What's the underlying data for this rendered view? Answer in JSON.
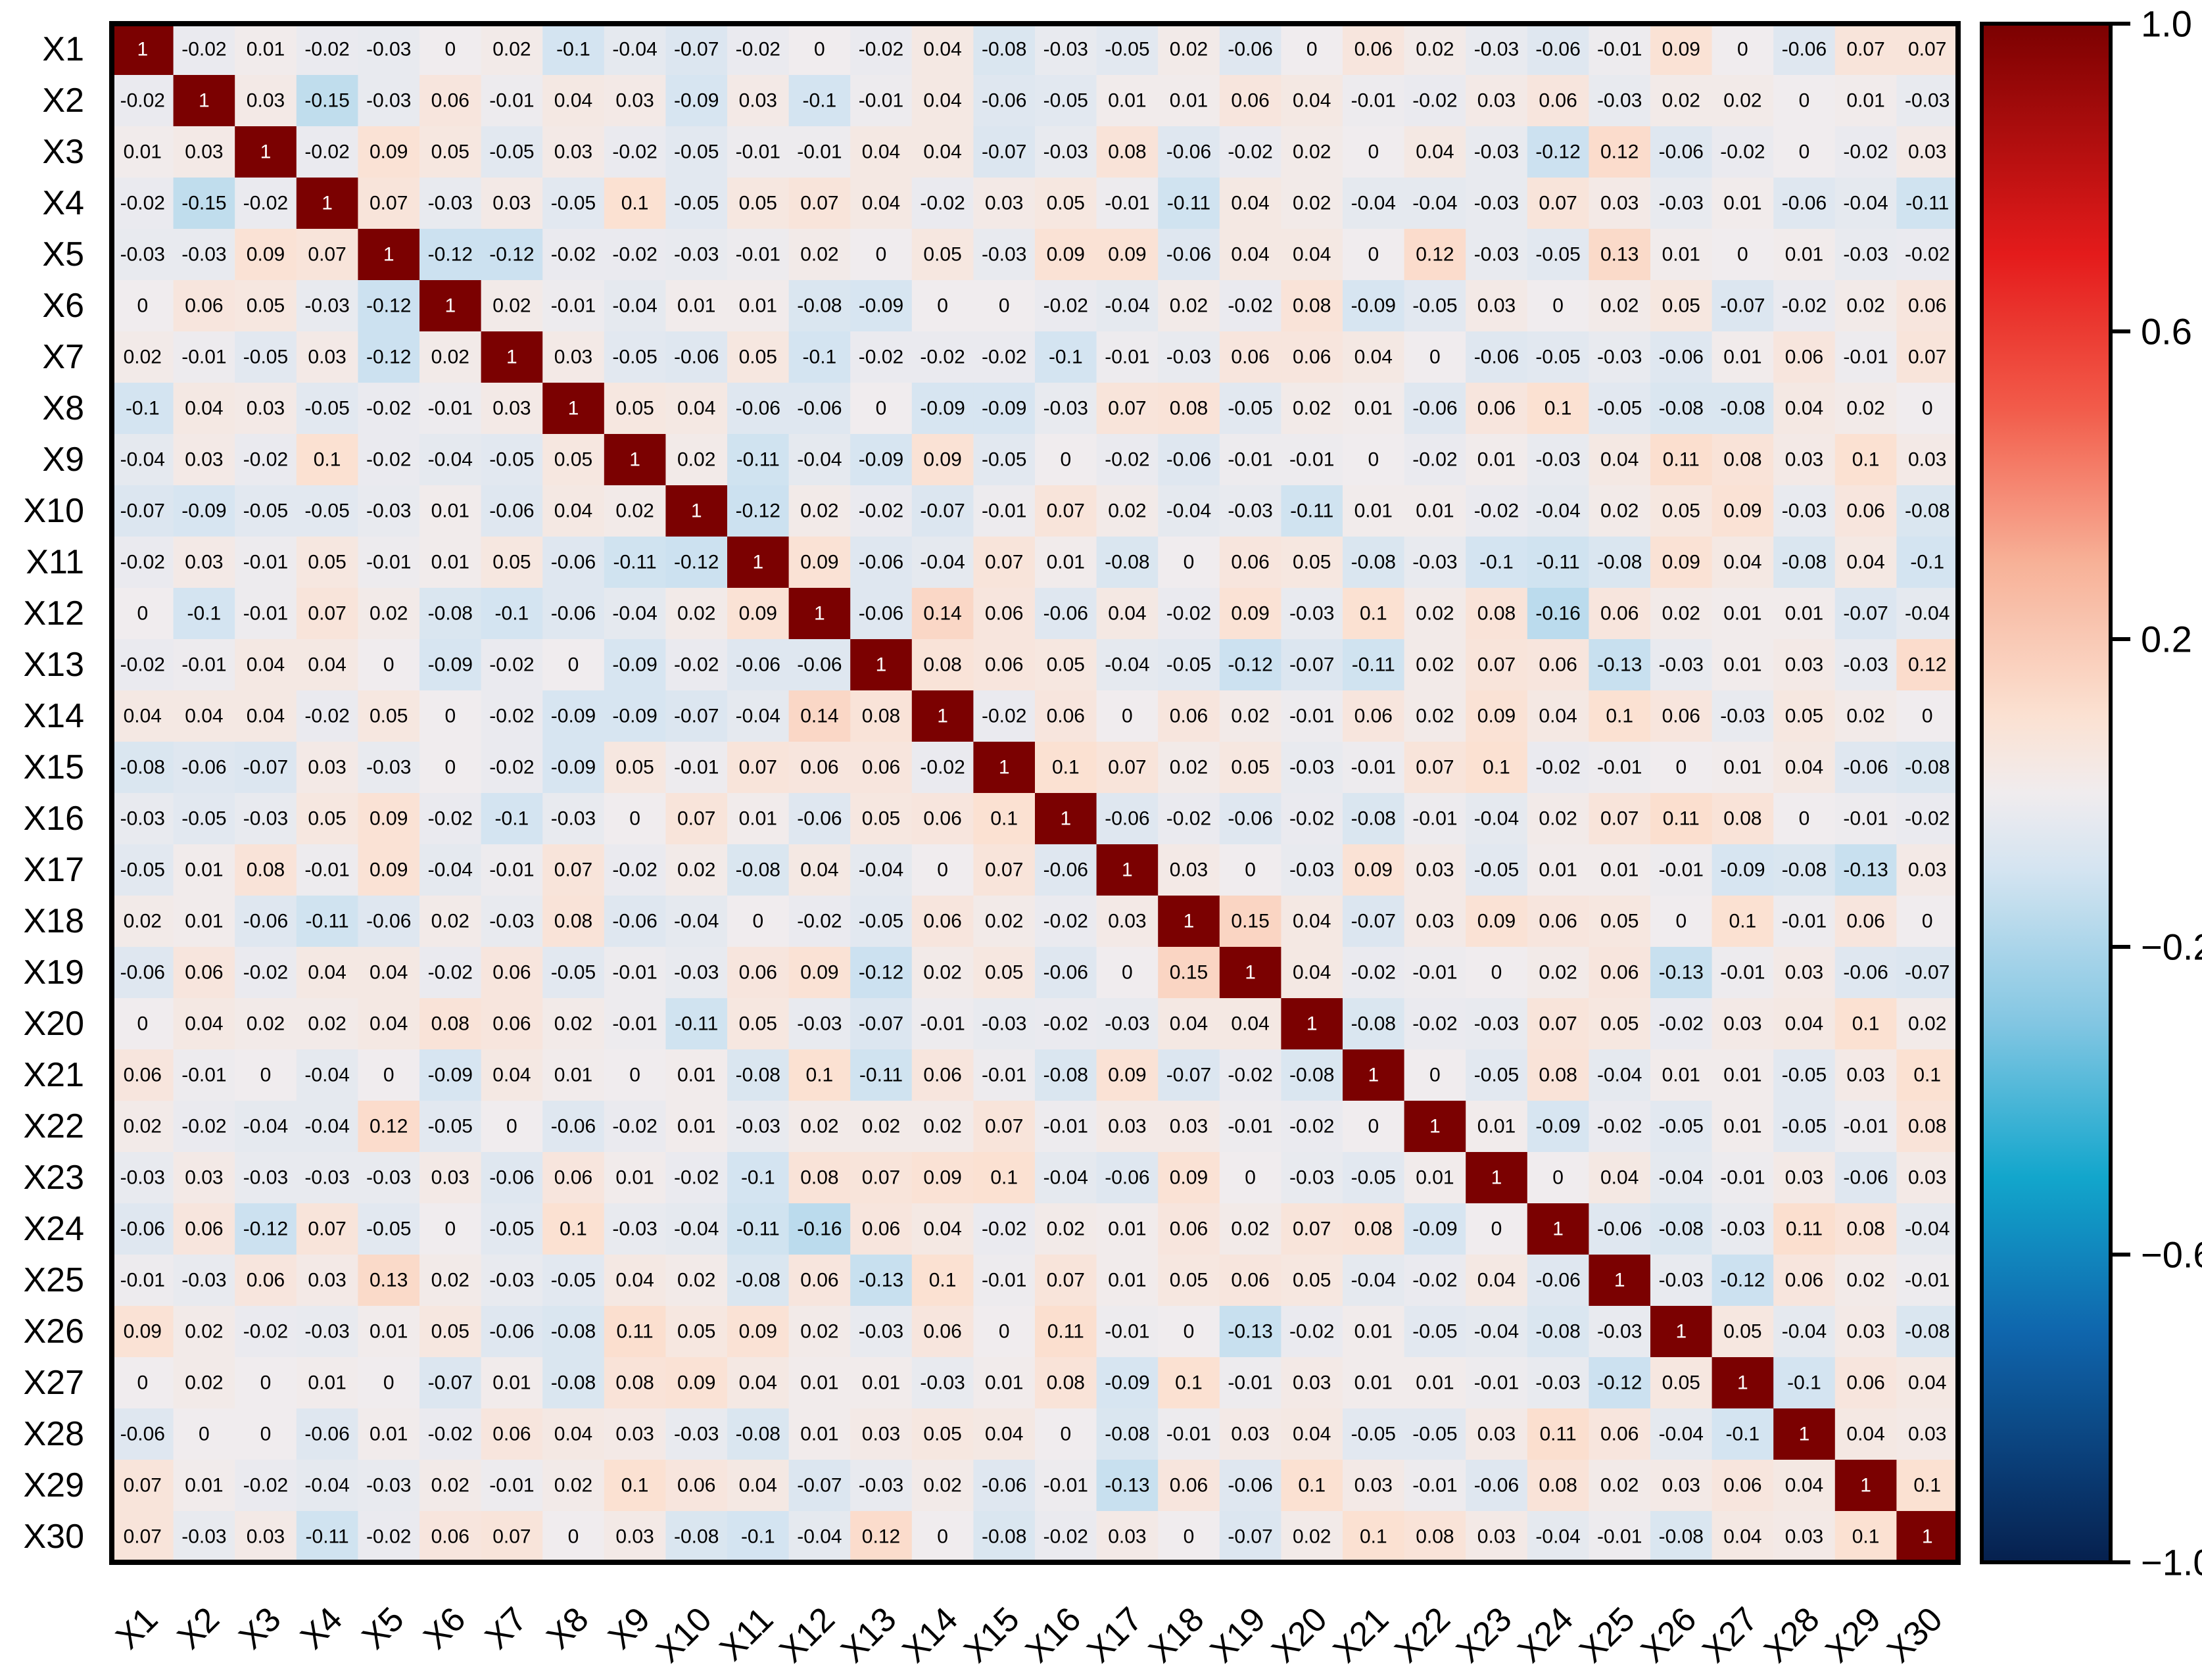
{
  "chart_data": {
    "type": "heatmap",
    "title": "",
    "xlabel": "",
    "ylabel": "",
    "variables": [
      "X1",
      "X2",
      "X3",
      "X4",
      "X5",
      "X6",
      "X7",
      "X8",
      "X9",
      "X10",
      "X11",
      "X12",
      "X13",
      "X14",
      "X15",
      "X16",
      "X17",
      "X18",
      "X19",
      "X20",
      "X21",
      "X22",
      "X23",
      "X24",
      "X25",
      "X26",
      "X27",
      "X28",
      "X29",
      "X30"
    ],
    "values": [
      [
        1,
        -0.02,
        0.01,
        -0.02,
        -0.03,
        0,
        0.02,
        -0.1,
        -0.04,
        -0.07,
        -0.02,
        0,
        -0.02,
        0.04,
        -0.08,
        -0.03,
        -0.05,
        0.02,
        -0.06,
        0,
        0.06,
        0.02,
        -0.03,
        -0.06,
        -0.01,
        0.09,
        0,
        -0.06,
        0.07,
        0.07
      ],
      [
        -0.02,
        1,
        0.03,
        -0.15,
        -0.03,
        0.06,
        -0.01,
        0.04,
        0.03,
        -0.09,
        0.03,
        -0.1,
        -0.01,
        0.04,
        -0.06,
        -0.05,
        0.01,
        0.01,
        0.06,
        0.04,
        -0.01,
        -0.02,
        0.03,
        0.06,
        -0.03,
        0.02,
        0.02,
        0,
        0.01,
        -0.03
      ],
      [
        0.01,
        0.03,
        1,
        -0.02,
        0.09,
        0.05,
        -0.05,
        0.03,
        -0.02,
        -0.05,
        -0.01,
        -0.01,
        0.04,
        0.04,
        -0.07,
        -0.03,
        0.08,
        -0.06,
        -0.02,
        0.02,
        0,
        0.04,
        -0.03,
        -0.12,
        0.12,
        -0.06,
        -0.02,
        0,
        -0.02,
        0.03
      ],
      [
        -0.02,
        -0.15,
        -0.02,
        1,
        0.07,
        -0.03,
        0.03,
        -0.05,
        0.1,
        -0.05,
        0.05,
        0.07,
        0.04,
        -0.02,
        0.03,
        0.05,
        -0.01,
        -0.11,
        0.04,
        0.02,
        -0.04,
        -0.04,
        -0.03,
        0.07,
        0.03,
        -0.03,
        0.01,
        -0.06,
        -0.04,
        -0.11
      ],
      [
        -0.03,
        -0.03,
        0.09,
        0.07,
        1,
        -0.12,
        -0.12,
        -0.02,
        -0.02,
        -0.03,
        -0.01,
        0.02,
        0,
        0.05,
        -0.03,
        0.09,
        0.09,
        -0.06,
        0.04,
        0.04,
        0,
        0.12,
        -0.03,
        -0.05,
        0.13,
        0.01,
        0,
        0.01,
        -0.03,
        -0.02
      ],
      [
        0,
        0.06,
        0.05,
        -0.03,
        -0.12,
        1,
        0.02,
        -0.01,
        -0.04,
        0.01,
        0.01,
        -0.08,
        -0.09,
        0,
        0,
        -0.02,
        -0.04,
        0.02,
        -0.02,
        0.08,
        -0.09,
        -0.05,
        0.03,
        0,
        0.02,
        0.05,
        -0.07,
        -0.02,
        0.02,
        0.06
      ],
      [
        0.02,
        -0.01,
        -0.05,
        0.03,
        -0.12,
        0.02,
        1,
        0.03,
        -0.05,
        -0.06,
        0.05,
        -0.1,
        -0.02,
        -0.02,
        -0.02,
        -0.1,
        -0.01,
        -0.03,
        0.06,
        0.06,
        0.04,
        0,
        -0.06,
        -0.05,
        -0.03,
        -0.06,
        0.01,
        0.06,
        -0.01,
        0.07
      ],
      [
        -0.1,
        0.04,
        0.03,
        -0.05,
        -0.02,
        -0.01,
        0.03,
        1,
        0.05,
        0.04,
        -0.06,
        -0.06,
        0,
        -0.09,
        -0.09,
        -0.03,
        0.07,
        0.08,
        -0.05,
        0.02,
        0.01,
        -0.06,
        0.06,
        0.1,
        -0.05,
        -0.08,
        -0.08,
        0.04,
        0.02,
        0
      ],
      [
        -0.04,
        0.03,
        -0.02,
        0.1,
        -0.02,
        -0.04,
        -0.05,
        0.05,
        1,
        0.02,
        -0.11,
        -0.04,
        -0.09,
        0.09,
        -0.05,
        0,
        -0.02,
        -0.06,
        -0.01,
        -0.01,
        0,
        -0.02,
        0.01,
        -0.03,
        0.04,
        0.11,
        0.08,
        0.03,
        0.1,
        0.03
      ],
      [
        -0.07,
        -0.09,
        -0.05,
        -0.05,
        -0.03,
        0.01,
        -0.06,
        0.04,
        0.02,
        1,
        -0.12,
        0.02,
        -0.02,
        -0.07,
        -0.01,
        0.07,
        0.02,
        -0.04,
        -0.03,
        -0.11,
        0.01,
        0.01,
        -0.02,
        -0.04,
        0.02,
        0.05,
        0.09,
        -0.03,
        0.06,
        -0.08
      ],
      [
        -0.02,
        0.03,
        -0.01,
        0.05,
        -0.01,
        0.01,
        0.05,
        -0.06,
        -0.11,
        -0.12,
        1,
        0.09,
        -0.06,
        -0.04,
        0.07,
        0.01,
        -0.08,
        0,
        0.06,
        0.05,
        -0.08,
        -0.03,
        -0.1,
        -0.11,
        -0.08,
        0.09,
        0.04,
        -0.08,
        0.04,
        -0.1
      ],
      [
        0,
        -0.1,
        -0.01,
        0.07,
        0.02,
        -0.08,
        -0.1,
        -0.06,
        -0.04,
        0.02,
        0.09,
        1,
        -0.06,
        0.14,
        0.06,
        -0.06,
        0.04,
        -0.02,
        0.09,
        -0.03,
        0.1,
        0.02,
        0.08,
        -0.16,
        0.06,
        0.02,
        0.01,
        0.01,
        -0.07,
        -0.04
      ],
      [
        -0.02,
        -0.01,
        0.04,
        0.04,
        0,
        -0.09,
        -0.02,
        0,
        -0.09,
        -0.02,
        -0.06,
        -0.06,
        1,
        0.08,
        0.06,
        0.05,
        -0.04,
        -0.05,
        -0.12,
        -0.07,
        -0.11,
        0.02,
        0.07,
        0.06,
        -0.13,
        -0.03,
        0.01,
        0.03,
        -0.03,
        0.12
      ],
      [
        0.04,
        0.04,
        0.04,
        -0.02,
        0.05,
        0,
        -0.02,
        -0.09,
        -0.09,
        -0.07,
        -0.04,
        0.14,
        0.08,
        1,
        -0.02,
        0.06,
        0,
        0.06,
        0.02,
        -0.01,
        0.06,
        0.02,
        0.09,
        0.04,
        0.1,
        0.06,
        -0.03,
        0.05,
        0.02,
        0
      ],
      [
        -0.08,
        -0.06,
        -0.07,
        0.03,
        -0.03,
        0,
        -0.02,
        -0.09,
        0.05,
        -0.01,
        0.07,
        0.06,
        0.06,
        -0.02,
        1,
        0.1,
        0.07,
        0.02,
        0.05,
        -0.03,
        -0.01,
        0.07,
        0.1,
        -0.02,
        -0.01,
        0,
        0.01,
        0.04,
        -0.06,
        -0.08
      ],
      [
        -0.03,
        -0.05,
        -0.03,
        0.05,
        0.09,
        -0.02,
        -0.1,
        -0.03,
        0,
        0.07,
        0.01,
        -0.06,
        0.05,
        0.06,
        0.1,
        1,
        -0.06,
        -0.02,
        -0.06,
        -0.02,
        -0.08,
        -0.01,
        -0.04,
        0.02,
        0.07,
        0.11,
        0.08,
        0,
        -0.01,
        -0.02
      ],
      [
        -0.05,
        0.01,
        0.08,
        -0.01,
        0.09,
        -0.04,
        -0.01,
        0.07,
        -0.02,
        0.02,
        -0.08,
        0.04,
        -0.04,
        0,
        0.07,
        -0.06,
        1,
        0.03,
        0,
        -0.03,
        0.09,
        0.03,
        -0.05,
        0.01,
        0.01,
        -0.01,
        -0.09,
        -0.08,
        -0.13,
        0.03
      ],
      [
        0.02,
        0.01,
        -0.06,
        -0.11,
        -0.06,
        0.02,
        -0.03,
        0.08,
        -0.06,
        -0.04,
        0,
        -0.02,
        -0.05,
        0.06,
        0.02,
        -0.02,
        0.03,
        1,
        0.15,
        0.04,
        -0.07,
        0.03,
        0.09,
        0.06,
        0.05,
        0,
        0.1,
        -0.01,
        0.06,
        0
      ],
      [
        -0.06,
        0.06,
        -0.02,
        0.04,
        0.04,
        -0.02,
        0.06,
        -0.05,
        -0.01,
        -0.03,
        0.06,
        0.09,
        -0.12,
        0.02,
        0.05,
        -0.06,
        0,
        0.15,
        1,
        0.04,
        -0.02,
        -0.01,
        0,
        0.02,
        0.06,
        -0.13,
        -0.01,
        0.03,
        -0.06,
        -0.07
      ],
      [
        0,
        0.04,
        0.02,
        0.02,
        0.04,
        0.08,
        0.06,
        0.02,
        -0.01,
        -0.11,
        0.05,
        -0.03,
        -0.07,
        -0.01,
        -0.03,
        -0.02,
        -0.03,
        0.04,
        0.04,
        1,
        -0.08,
        -0.02,
        -0.03,
        0.07,
        0.05,
        -0.02,
        0.03,
        0.04,
        0.1,
        0.02
      ],
      [
        0.06,
        -0.01,
        0,
        -0.04,
        0,
        -0.09,
        0.04,
        0.01,
        0,
        0.01,
        -0.08,
        0.1,
        -0.11,
        0.06,
        -0.01,
        -0.08,
        0.09,
        -0.07,
        -0.02,
        -0.08,
        1,
        0,
        -0.05,
        0.08,
        -0.04,
        0.01,
        0.01,
        -0.05,
        0.03,
        0.1
      ],
      [
        0.02,
        -0.02,
        -0.04,
        -0.04,
        0.12,
        -0.05,
        0,
        -0.06,
        -0.02,
        0.01,
        -0.03,
        0.02,
        0.02,
        0.02,
        0.07,
        -0.01,
        0.03,
        0.03,
        -0.01,
        -0.02,
        0,
        1,
        0.01,
        -0.09,
        -0.02,
        -0.05,
        0.01,
        -0.05,
        -0.01,
        0.08
      ],
      [
        -0.03,
        0.03,
        -0.03,
        -0.03,
        -0.03,
        0.03,
        -0.06,
        0.06,
        0.01,
        -0.02,
        -0.1,
        0.08,
        0.07,
        0.09,
        0.1,
        -0.04,
        -0.06,
        0.09,
        0,
        -0.03,
        -0.05,
        0.01,
        1,
        0,
        0.04,
        -0.04,
        -0.01,
        0.03,
        -0.06,
        0.03
      ],
      [
        -0.06,
        0.06,
        -0.12,
        0.07,
        -0.05,
        0,
        -0.05,
        0.1,
        -0.03,
        -0.04,
        -0.11,
        -0.16,
        0.06,
        0.04,
        -0.02,
        0.02,
        0.01,
        0.06,
        0.02,
        0.07,
        0.08,
        -0.09,
        0,
        1,
        -0.06,
        -0.08,
        -0.03,
        0.11,
        0.08,
        -0.04
      ],
      [
        -0.01,
        -0.03,
        0.06,
        0.03,
        0.13,
        0.02,
        -0.03,
        -0.05,
        0.04,
        0.02,
        -0.08,
        0.06,
        -0.13,
        0.1,
        -0.01,
        0.07,
        0.01,
        0.05,
        0.06,
        0.05,
        -0.04,
        -0.02,
        0.04,
        -0.06,
        1,
        -0.03,
        -0.12,
        0.06,
        0.02,
        -0.01
      ],
      [
        0.09,
        0.02,
        -0.02,
        -0.03,
        0.01,
        0.05,
        -0.06,
        -0.08,
        0.11,
        0.05,
        0.09,
        0.02,
        -0.03,
        0.06,
        0,
        0.11,
        -0.01,
        0,
        -0.13,
        -0.02,
        0.01,
        -0.05,
        -0.04,
        -0.08,
        -0.03,
        1,
        0.05,
        -0.04,
        0.03,
        -0.08
      ],
      [
        0,
        0.02,
        0,
        0.01,
        0,
        -0.07,
        0.01,
        -0.08,
        0.08,
        0.09,
        0.04,
        0.01,
        0.01,
        -0.03,
        0.01,
        0.08,
        -0.09,
        0.1,
        -0.01,
        0.03,
        0.01,
        0.01,
        -0.01,
        -0.03,
        -0.12,
        0.05,
        1,
        -0.1,
        0.06,
        0.04
      ],
      [
        -0.06,
        0,
        0,
        -0.06,
        0.01,
        -0.02,
        0.06,
        0.04,
        0.03,
        -0.03,
        -0.08,
        0.01,
        0.03,
        0.05,
        0.04,
        0,
        -0.08,
        -0.01,
        0.03,
        0.04,
        -0.05,
        -0.05,
        0.03,
        0.11,
        0.06,
        -0.04,
        -0.1,
        1,
        0.04,
        0.03
      ],
      [
        0.07,
        0.01,
        -0.02,
        -0.04,
        -0.03,
        0.02,
        -0.01,
        0.02,
        0.1,
        0.06,
        0.04,
        -0.07,
        -0.03,
        0.02,
        -0.06,
        -0.01,
        -0.13,
        0.06,
        -0.06,
        0.1,
        0.03,
        -0.01,
        -0.06,
        0.08,
        0.02,
        0.03,
        0.06,
        0.04,
        1,
        0.1
      ],
      [
        0.07,
        -0.03,
        0.03,
        -0.11,
        -0.02,
        0.06,
        0.07,
        0,
        0.03,
        -0.08,
        -0.1,
        -0.04,
        0.12,
        0,
        -0.08,
        -0.02,
        0.03,
        0,
        -0.07,
        0.02,
        0.1,
        0.08,
        0.03,
        -0.04,
        -0.01,
        -0.08,
        0.04,
        0.03,
        0.1,
        1
      ]
    ],
    "colorbar": {
      "range": [
        -1.0,
        1.0
      ],
      "ticks": [
        1.0,
        0.6,
        0.2,
        -0.2,
        -0.6,
        -1.0
      ],
      "tick_labels": [
        "1.0",
        "0.6",
        "0.2",
        "−0.2",
        "−0.6",
        "−1.0"
      ],
      "placement": "right"
    },
    "colormap": {
      "stops": [
        {
          "v": -1.0,
          "color": "#06204e"
        },
        {
          "v": -0.7,
          "color": "#0f66ad"
        },
        {
          "v": -0.5,
          "color": "#12a6cc"
        },
        {
          "v": -0.3,
          "color": "#82c6e2"
        },
        {
          "v": -0.1,
          "color": "#d4e4f1"
        },
        {
          "v": 0.0,
          "color": "#f0ecee"
        },
        {
          "v": 0.1,
          "color": "#fbe1d2"
        },
        {
          "v": 0.3,
          "color": "#f7b197"
        },
        {
          "v": 0.5,
          "color": "#f25b4a"
        },
        {
          "v": 0.7,
          "color": "#e41b1b"
        },
        {
          "v": 1.0,
          "color": "#7b0101"
        }
      ]
    },
    "grid": false
  }
}
